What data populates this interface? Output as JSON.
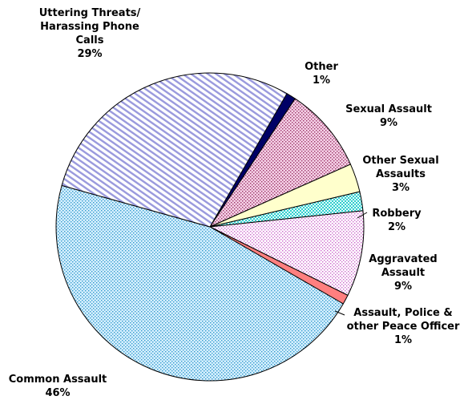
{
  "chart_data": {
    "type": "pie",
    "categories": [
      "Other",
      "Sexual Assault",
      "Other Sexual Assaults",
      "Robbery",
      "Aggravated Assault",
      "Assault, Police & other Peace Officer",
      "Common Assault",
      "Uttering Threats/ Harassing Phone Calls"
    ],
    "values": [
      1,
      9,
      3,
      2,
      9,
      1,
      46,
      29
    ],
    "value_labels": [
      "1%",
      "9%",
      "3%",
      "2%",
      "9%",
      "1%",
      "46%",
      "29%"
    ],
    "colors": [
      "#000066",
      "#993366",
      "#ffffcc",
      "#33cccc",
      "#cc66cc",
      "#ff7f7f",
      "#3399cc",
      "#9999dd"
    ]
  }
}
